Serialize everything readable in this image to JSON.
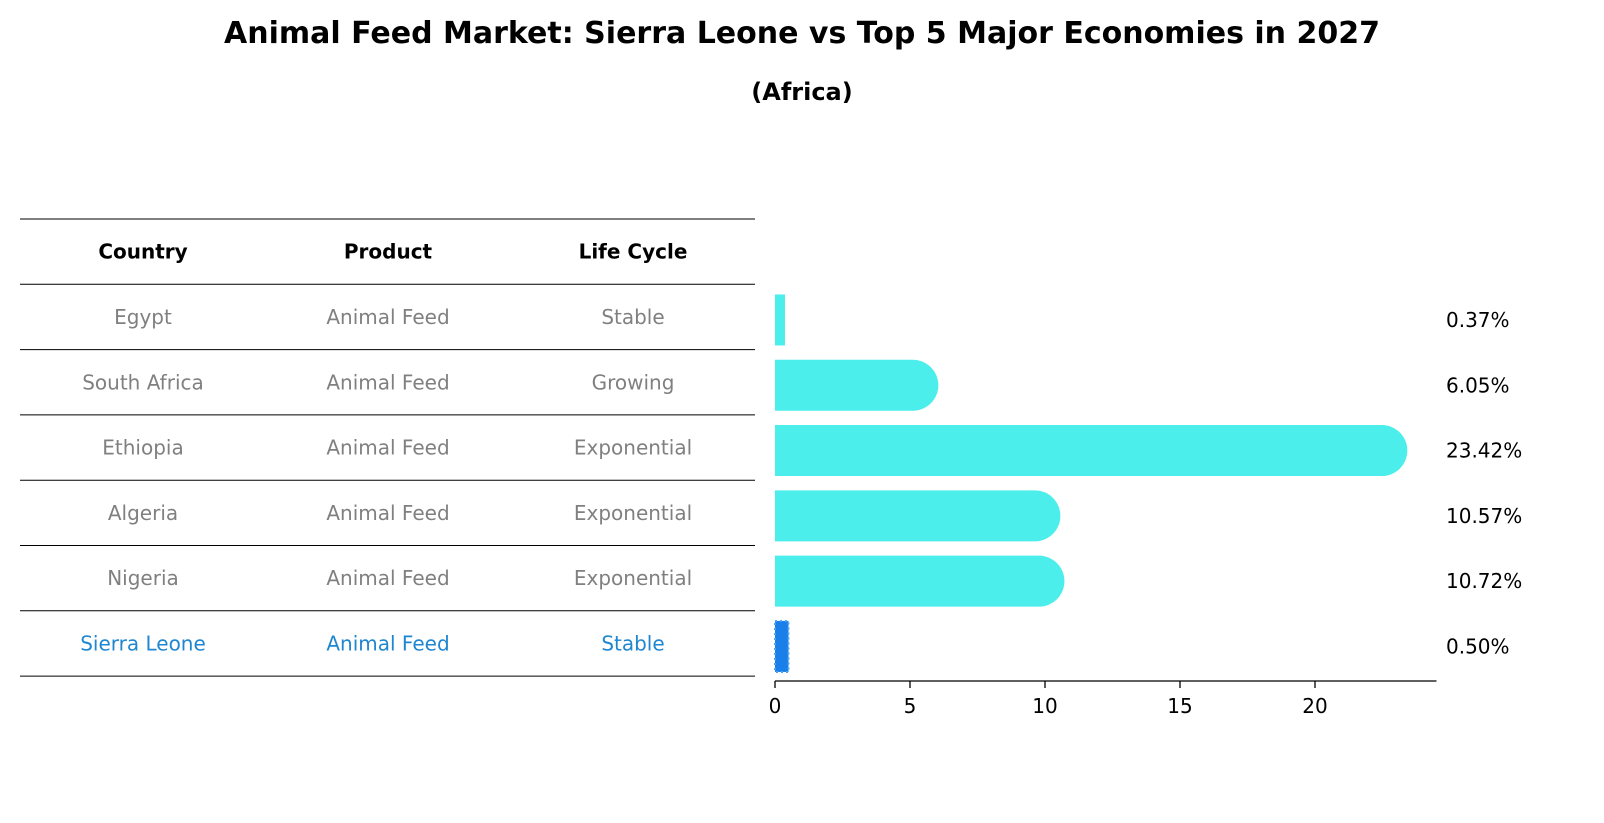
{
  "title": "Animal Feed Market: Sierra Leone vs Top 5 Major Economies in 2027",
  "subtitle": "(Africa)",
  "table": {
    "headers": [
      "Country",
      "Product",
      "Life Cycle"
    ],
    "rows": [
      {
        "country": "Egypt",
        "product": "Animal Feed",
        "life_cycle": "Stable",
        "highlight": false
      },
      {
        "country": "South Africa",
        "product": "Animal Feed",
        "life_cycle": "Growing",
        "highlight": false
      },
      {
        "country": "Ethiopia",
        "product": "Animal Feed",
        "life_cycle": "Exponential",
        "highlight": false
      },
      {
        "country": "Algeria",
        "product": "Animal Feed",
        "life_cycle": "Exponential",
        "highlight": false
      },
      {
        "country": "Nigeria",
        "product": "Animal Feed",
        "life_cycle": "Exponential",
        "highlight": false
      },
      {
        "country": "Sierra Leone",
        "product": "Animal Feed",
        "life_cycle": "Stable",
        "highlight": true
      }
    ]
  },
  "colors": {
    "bar": "#4ceeec",
    "highlight_bar": "#1a7fe8",
    "highlight_text": "#1f86d0",
    "muted_text": "#808080",
    "line": "#000000"
  },
  "chart_data": {
    "type": "bar",
    "orientation": "horizontal",
    "categories": [
      "Egypt",
      "South Africa",
      "Ethiopia",
      "Algeria",
      "Nigeria",
      "Sierra Leone"
    ],
    "values": [
      0.37,
      6.05,
      23.42,
      10.57,
      10.72,
      0.5
    ],
    "value_labels": [
      "0.37%",
      "6.05%",
      "23.42%",
      "10.57%",
      "10.72%",
      "0.50%"
    ],
    "highlight": "Sierra Leone",
    "xlim": [
      0,
      24.5
    ],
    "xticks": [
      0,
      5,
      10,
      15,
      20
    ],
    "xlabel": "",
    "ylabel": "",
    "grid": false
  }
}
